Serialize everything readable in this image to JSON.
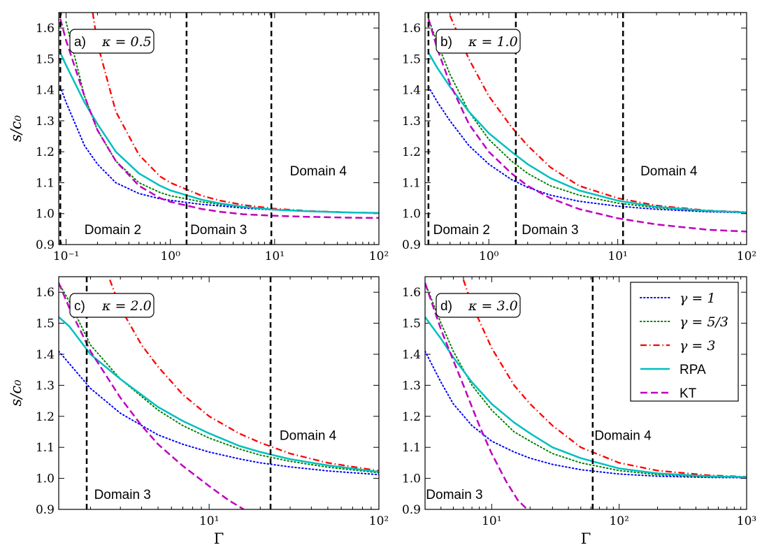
{
  "figure": {
    "ylabel": "s/c₀",
    "xlabel": "Γ"
  },
  "legend": {
    "entries": [
      {
        "label": "γ = 1",
        "color": "#0000ff",
        "style": "dotted"
      },
      {
        "label": "γ = 5/3",
        "color": "#008000",
        "style": "dotted"
      },
      {
        "label": "γ = 3",
        "color": "#ff0000",
        "style": "dashdot"
      },
      {
        "label": "RPA",
        "color": "#00bfbf",
        "style": "solid"
      },
      {
        "label": "KT",
        "color": "#bf00bf",
        "style": "dashed"
      }
    ]
  },
  "chart_data": [
    {
      "type": "line",
      "panel_label": "a)",
      "kappa_label": "κ = 0.5",
      "xscale": "log",
      "xlim": [
        0.085,
        100
      ],
      "ylim": [
        0.9,
        1.65
      ],
      "xticks": [
        {
          "value": 0.1,
          "label": "10⁻¹"
        },
        {
          "value": 1,
          "label": "10⁰"
        },
        {
          "value": 10,
          "label": "10¹"
        },
        {
          "value": 100,
          "label": "10²"
        }
      ],
      "yticks": [
        0.9,
        1.0,
        1.1,
        1.2,
        1.3,
        1.4,
        1.5,
        1.6
      ],
      "ylabel": "s/c₀",
      "xlabel": "",
      "domain_lines": [
        0.088,
        1.43,
        9.3
      ],
      "domain_labels": [
        {
          "text": "Domain 2",
          "x": 0.15,
          "y": 0.95
        },
        {
          "text": "Domain 3",
          "x": 1.55,
          "y": 0.95
        },
        {
          "text": "Domain 4",
          "x": 14,
          "y": 1.14
        }
      ],
      "series": [
        {
          "name": "γ = 1",
          "x": [
            0.088,
            0.1,
            0.15,
            0.2,
            0.3,
            0.5,
            0.8,
            1.0,
            2.0,
            3.0,
            5.0,
            10,
            20,
            50,
            100
          ],
          "y": [
            1.41,
            1.36,
            1.22,
            1.16,
            1.1,
            1.065,
            1.048,
            1.043,
            1.03,
            1.025,
            1.018,
            1.012,
            1.008,
            1.004,
            1.002
          ]
        },
        {
          "name": "γ = 5/3",
          "x": [
            0.1,
            0.15,
            0.2,
            0.3,
            0.5,
            0.8,
            1.0,
            2.0,
            3.0,
            5.0,
            10,
            20,
            50,
            100
          ],
          "y": [
            1.62,
            1.38,
            1.27,
            1.17,
            1.1,
            1.068,
            1.058,
            1.038,
            1.03,
            1.021,
            1.013,
            1.008,
            1.004,
            1.002
          ]
        },
        {
          "name": "γ = 3",
          "x": [
            0.18,
            0.2,
            0.3,
            0.5,
            0.8,
            1.0,
            2.0,
            3.0,
            5.0,
            10,
            20,
            50,
            100
          ],
          "y": [
            1.65,
            1.55,
            1.33,
            1.19,
            1.12,
            1.1,
            1.058,
            1.042,
            1.028,
            1.016,
            1.009,
            1.004,
            1.002
          ]
        },
        {
          "name": "RPA",
          "x": [
            0.088,
            0.1,
            0.15,
            0.2,
            0.3,
            0.5,
            0.8,
            1.0,
            2.0,
            3.0,
            5.0,
            10,
            20,
            50,
            100
          ],
          "y": [
            1.52,
            1.48,
            1.36,
            1.29,
            1.2,
            1.13,
            1.09,
            1.075,
            1.045,
            1.033,
            1.022,
            1.013,
            1.008,
            1.004,
            1.002
          ]
        },
        {
          "name": "KT",
          "x": [
            0.088,
            0.1,
            0.15,
            0.2,
            0.3,
            0.5,
            0.8,
            1.0,
            2.0,
            3.0,
            5.0,
            10,
            20,
            50,
            100
          ],
          "y": [
            1.63,
            1.56,
            1.38,
            1.27,
            1.17,
            1.09,
            1.05,
            1.038,
            1.015,
            1.006,
            0.998,
            0.993,
            0.99,
            0.987,
            0.986
          ]
        }
      ]
    },
    {
      "type": "line",
      "panel_label": "b)",
      "kappa_label": "κ = 1.0",
      "xscale": "log",
      "xlim": [
        0.32,
        100
      ],
      "ylim": [
        0.9,
        1.65
      ],
      "xticks": [
        {
          "value": 1,
          "label": "10⁰"
        },
        {
          "value": 10,
          "label": "10¹"
        },
        {
          "value": 100,
          "label": "10²"
        }
      ],
      "yticks": [
        0.9,
        1.0,
        1.1,
        1.2,
        1.3,
        1.4,
        1.5,
        1.6
      ],
      "ylabel": "",
      "xlabel": "",
      "domain_lines": [
        0.34,
        1.62,
        11
      ],
      "domain_labels": [
        {
          "text": "Domain 2",
          "x": 0.37,
          "y": 0.95
        },
        {
          "text": "Domain 3",
          "x": 1.8,
          "y": 0.95
        },
        {
          "text": "Domain 4",
          "x": 15,
          "y": 1.14
        }
      ],
      "series": [
        {
          "name": "γ = 1",
          "x": [
            0.34,
            0.4,
            0.5,
            0.7,
            1.0,
            1.5,
            2.0,
            3.0,
            5.0,
            10,
            20,
            50,
            100
          ],
          "y": [
            1.41,
            1.36,
            1.3,
            1.22,
            1.16,
            1.11,
            1.085,
            1.06,
            1.04,
            1.024,
            1.014,
            1.006,
            1.003
          ]
        },
        {
          "name": "γ = 5/3",
          "x": [
            0.34,
            0.4,
            0.5,
            0.7,
            1.0,
            1.5,
            2.0,
            3.0,
            5.0,
            10,
            20,
            50,
            100
          ],
          "y": [
            1.63,
            1.55,
            1.45,
            1.33,
            1.24,
            1.17,
            1.13,
            1.09,
            1.06,
            1.034,
            1.019,
            1.008,
            1.004
          ]
        },
        {
          "name": "γ = 3",
          "x": [
            0.5,
            0.7,
            1.0,
            1.5,
            2.0,
            3.0,
            5.0,
            10,
            20,
            50,
            100
          ],
          "y": [
            1.64,
            1.5,
            1.38,
            1.28,
            1.22,
            1.15,
            1.09,
            1.05,
            1.026,
            1.01,
            1.005
          ]
        },
        {
          "name": "RPA",
          "x": [
            0.34,
            0.4,
            0.5,
            0.7,
            1.0,
            1.5,
            2.0,
            3.0,
            5.0,
            10,
            20,
            50,
            100
          ],
          "y": [
            1.52,
            1.47,
            1.41,
            1.33,
            1.26,
            1.2,
            1.16,
            1.115,
            1.075,
            1.042,
            1.022,
            1.009,
            1.004
          ]
        },
        {
          "name": "KT",
          "x": [
            0.34,
            0.4,
            0.5,
            0.7,
            1.0,
            1.5,
            2.0,
            3.0,
            5.0,
            10,
            20,
            50,
            100
          ],
          "y": [
            1.63,
            1.53,
            1.42,
            1.29,
            1.2,
            1.13,
            1.09,
            1.05,
            1.015,
            0.985,
            0.965,
            0.948,
            0.942
          ]
        }
      ]
    },
    {
      "type": "line",
      "panel_label": "c)",
      "kappa_label": "κ = 2.0",
      "xscale": "log",
      "xlim": [
        1.3,
        100
      ],
      "ylim": [
        0.9,
        1.65
      ],
      "xticks": [
        {
          "value": 10,
          "label": "10¹"
        },
        {
          "value": 100,
          "label": "10²"
        }
      ],
      "yticks": [
        0.9,
        1.0,
        1.1,
        1.2,
        1.3,
        1.4,
        1.5,
        1.6
      ],
      "ylabel": "s/c₀",
      "xlabel": "Γ",
      "domain_lines": [
        1.9,
        23
      ],
      "domain_labels": [
        {
          "text": "Domain 3",
          "x": 2.1,
          "y": 0.95
        },
        {
          "text": "Domain 4",
          "x": 26,
          "y": 1.14
        }
      ],
      "series": [
        {
          "name": "γ = 1",
          "x": [
            1.3,
            1.5,
            2.0,
            3.0,
            5.0,
            7.0,
            10,
            15,
            20,
            30,
            50,
            100
          ],
          "y": [
            1.41,
            1.37,
            1.29,
            1.21,
            1.14,
            1.11,
            1.085,
            1.063,
            1.05,
            1.037,
            1.024,
            1.012
          ]
        },
        {
          "name": "γ = 5/3",
          "x": [
            1.3,
            1.5,
            2.0,
            3.0,
            5.0,
            7.0,
            10,
            15,
            20,
            30,
            50,
            100
          ],
          "y": [
            1.63,
            1.57,
            1.43,
            1.32,
            1.22,
            1.17,
            1.13,
            1.095,
            1.075,
            1.055,
            1.036,
            1.018
          ]
        },
        {
          "name": "γ = 3",
          "x": [
            2.6,
            3.0,
            4.0,
            5.0,
            7.0,
            10,
            15,
            20,
            30,
            50,
            100
          ],
          "y": [
            1.64,
            1.55,
            1.43,
            1.36,
            1.27,
            1.2,
            1.145,
            1.115,
            1.08,
            1.05,
            1.024
          ]
        },
        {
          "name": "RPA",
          "x": [
            1.3,
            1.5,
            2.0,
            3.0,
            5.0,
            7.0,
            10,
            15,
            20,
            30,
            50,
            100
          ],
          "y": [
            1.52,
            1.49,
            1.4,
            1.32,
            1.23,
            1.185,
            1.145,
            1.105,
            1.085,
            1.062,
            1.042,
            1.021
          ]
        },
        {
          "name": "KT",
          "x": [
            1.3,
            1.5,
            2.0,
            3.0,
            4.0,
            5.0,
            7.0,
            10,
            13,
            16
          ],
          "y": [
            1.63,
            1.55,
            1.41,
            1.26,
            1.17,
            1.11,
            1.04,
            0.975,
            0.93,
            0.9
          ]
        }
      ]
    },
    {
      "type": "line",
      "panel_label": "d)",
      "kappa_label": "κ = 3.0",
      "xscale": "log",
      "xlim": [
        3.0,
        1000
      ],
      "ylim": [
        0.9,
        1.65
      ],
      "xticks": [
        {
          "value": 10,
          "label": "10¹"
        },
        {
          "value": 100,
          "label": "10²"
        },
        {
          "value": 1000,
          "label": "10³"
        }
      ],
      "yticks": [
        0.9,
        1.0,
        1.1,
        1.2,
        1.3,
        1.4,
        1.5,
        1.6
      ],
      "ylabel": "",
      "xlabel": "Γ",
      "domain_lines": [
        62
      ],
      "domain_labels": [
        {
          "text": "Domain 3",
          "x": 3.05,
          "y": 0.95
        },
        {
          "text": "Domain 4",
          "x": 64,
          "y": 1.14
        }
      ],
      "series": [
        {
          "name": "γ = 1",
          "x": [
            3.0,
            4.0,
            5.0,
            7.0,
            10,
            15,
            20,
            30,
            50,
            100,
            200,
            500,
            1000
          ],
          "y": [
            1.41,
            1.31,
            1.24,
            1.17,
            1.12,
            1.085,
            1.065,
            1.045,
            1.028,
            1.014,
            1.007,
            1.003,
            1.002
          ]
        },
        {
          "name": "γ = 5/3",
          "x": [
            3.0,
            4.0,
            5.0,
            7.0,
            10,
            15,
            20,
            30,
            50,
            100,
            200,
            500,
            1000
          ],
          "y": [
            1.63,
            1.5,
            1.41,
            1.3,
            1.22,
            1.15,
            1.12,
            1.08,
            1.05,
            1.025,
            1.012,
            1.005,
            1.003
          ]
        },
        {
          "name": "γ = 3",
          "x": [
            6.0,
            7.0,
            10,
            15,
            20,
            30,
            50,
            100,
            200,
            500,
            1000
          ],
          "y": [
            1.64,
            1.56,
            1.42,
            1.3,
            1.24,
            1.17,
            1.1,
            1.05,
            1.025,
            1.01,
            1.005
          ]
        },
        {
          "name": "RPA",
          "x": [
            3.0,
            4.0,
            5.0,
            7.0,
            10,
            15,
            20,
            30,
            50,
            100,
            200,
            500,
            1000
          ],
          "y": [
            1.52,
            1.45,
            1.39,
            1.31,
            1.24,
            1.18,
            1.145,
            1.1,
            1.065,
            1.032,
            1.016,
            1.007,
            1.004
          ]
        },
        {
          "name": "KT",
          "x": [
            3.0,
            4.0,
            5.0,
            6.0,
            7.0,
            8.0,
            10,
            13,
            16,
            19
          ],
          "y": [
            1.63,
            1.48,
            1.38,
            1.3,
            1.23,
            1.17,
            1.08,
            0.99,
            0.93,
            0.9
          ]
        }
      ]
    }
  ]
}
